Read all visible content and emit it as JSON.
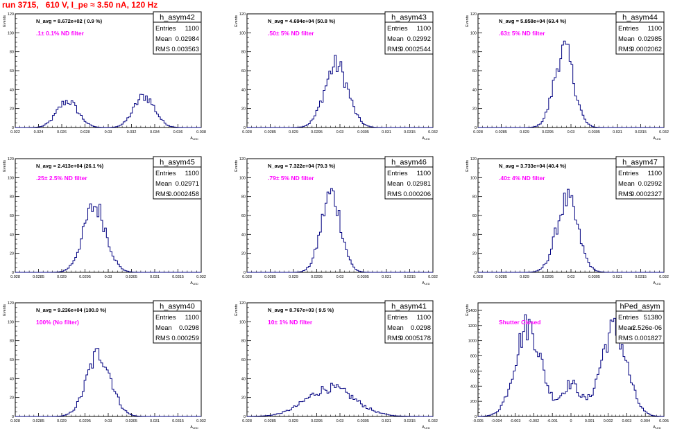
{
  "page": {
    "title": "run 3715,   610 V, I_pe ≈ 3.50 nA, 120 Hz"
  },
  "colors": {
    "hist": "#000080",
    "annot": "#ff00ff",
    "title_red": "#ff0000"
  },
  "chart_data": [
    {
      "type": "bar",
      "name": "h_asym42",
      "ylabel": "Events",
      "xlabel": "A",
      "xlim": [
        0.022,
        0.038
      ],
      "ylim": [
        0,
        120
      ],
      "xticks": [
        0.022,
        0.024,
        0.026,
        0.028,
        0.03,
        0.032,
        0.034,
        0.036,
        0.038
      ],
      "xtick_labels": [
        "0.022",
        "0.024",
        "0.026",
        "0.028",
        "0.03",
        "0.032",
        "0.034",
        "0.036",
        "0.038"
      ],
      "yticks": [
        0,
        20,
        40,
        60,
        80,
        100,
        120
      ],
      "navg": "N_avg = 8.672e+02 ( 0.9 %)",
      "annot": ".1± 0.1% ND filter",
      "stats": {
        "entries": "1100",
        "mean": "0.02984",
        "rms": "0.003563"
      },
      "peaks": [
        {
          "mu": 0.0265,
          "sigma": 0.0009,
          "amp": 28
        },
        {
          "mu": 0.0331,
          "sigma": 0.0009,
          "amp": 33
        }
      ]
    },
    {
      "type": "bar",
      "name": "h_asym43",
      "ylabel": "Events",
      "xlabel": "A",
      "xlim": [
        0.028,
        0.032
      ],
      "ylim": [
        0,
        120
      ],
      "xticks": [
        0.028,
        0.0285,
        0.029,
        0.0295,
        0.03,
        0.0305,
        0.031,
        0.0315,
        0.032
      ],
      "xtick_labels": [
        "0.028",
        "0.0285",
        "0.029",
        "0.0295",
        "0.03",
        "0.0305",
        "0.031",
        "0.0315",
        "0.032"
      ],
      "yticks": [
        0,
        20,
        40,
        60,
        80,
        100,
        120
      ],
      "navg": "N_avg = 4.694e+04 (50.8 %)",
      "annot": ".50± 5% ND filter",
      "stats": {
        "entries": "1100",
        "mean": "0.02992",
        "rms": "0.0002544"
      },
      "peaks": [
        {
          "mu": 0.02992,
          "sigma": 0.00025,
          "amp": 66
        }
      ]
    },
    {
      "type": "bar",
      "name": "h_asym44",
      "ylabel": "Events",
      "xlabel": "A",
      "xlim": [
        0.028,
        0.032
      ],
      "ylim": [
        0,
        120
      ],
      "xticks": [
        0.028,
        0.0285,
        0.029,
        0.0295,
        0.03,
        0.0305,
        0.031,
        0.0315,
        0.032
      ],
      "xtick_labels": [
        "0.028",
        "0.0285",
        "0.029",
        "0.0295",
        "0.03",
        "0.0305",
        "0.031",
        "0.0315",
        "0.032"
      ],
      "yticks": [
        0,
        20,
        40,
        60,
        80,
        100,
        120
      ],
      "navg": "N_avg = 5.858e+04 (63.4 %)",
      "annot": ".63± 5% ND filter",
      "stats": {
        "entries": "1100",
        "mean": "0.02985",
        "rms": "0.0002062"
      },
      "peaks": [
        {
          "mu": 0.02985,
          "sigma": 0.00021,
          "amp": 82
        }
      ]
    },
    {
      "type": "bar",
      "name": "h_asym45",
      "ylabel": "Events",
      "xlabel": "A",
      "xlim": [
        0.028,
        0.032
      ],
      "ylim": [
        0,
        120
      ],
      "xticks": [
        0.028,
        0.0285,
        0.029,
        0.0295,
        0.03,
        0.0305,
        0.031,
        0.0315,
        0.032
      ],
      "xtick_labels": [
        "0.028",
        "0.0285",
        "0.029",
        "0.0295",
        "0.03",
        "0.0305",
        "0.031",
        "0.0315",
        "0.032"
      ],
      "yticks": [
        0,
        20,
        40,
        60,
        80,
        100,
        120
      ],
      "navg": "N_avg = 2.413e+04 (26.1 %)",
      "annot": ".25± 2.5% ND filter",
      "stats": {
        "entries": "1100",
        "mean": "0.02971",
        "rms": "0.0002458"
      },
      "peaks": [
        {
          "mu": 0.02971,
          "sigma": 0.000245,
          "amp": 70
        }
      ]
    },
    {
      "type": "bar",
      "name": "h_asym46",
      "ylabel": "Events",
      "xlabel": "A",
      "xlim": [
        0.028,
        0.032
      ],
      "ylim": [
        0,
        120
      ],
      "xticks": [
        0.028,
        0.0285,
        0.029,
        0.0295,
        0.03,
        0.0305,
        0.031,
        0.0315,
        0.032
      ],
      "xtick_labels": [
        "0.028",
        "0.0285",
        "0.029",
        "0.0295",
        "0.03",
        "0.0305",
        "0.031",
        "0.0315",
        "0.032"
      ],
      "yticks": [
        0,
        20,
        40,
        60,
        80,
        100,
        120
      ],
      "navg": "N_avg = 7.322e+04 (79.3 %)",
      "annot": ".79± 5% ND filter",
      "stats": {
        "entries": "1100",
        "mean": "0.02981",
        "rms": "0.000206"
      },
      "peaks": [
        {
          "mu": 0.02981,
          "sigma": 0.00021,
          "amp": 83
        }
      ]
    },
    {
      "type": "bar",
      "name": "h_asym47",
      "ylabel": "Events",
      "xlabel": "A",
      "xlim": [
        0.028,
        0.032
      ],
      "ylim": [
        0,
        120
      ],
      "xticks": [
        0.028,
        0.0285,
        0.029,
        0.0295,
        0.03,
        0.0305,
        0.031,
        0.0315,
        0.032
      ],
      "xtick_labels": [
        "0.028",
        "0.0285",
        "0.029",
        "0.0295",
        "0.03",
        "0.0305",
        "0.031",
        "0.0315",
        "0.032"
      ],
      "yticks": [
        0,
        20,
        40,
        60,
        80,
        100,
        120
      ],
      "navg": "N_avg = 3.733e+04 (40.4 %)",
      "annot": ".40± 4% ND filter",
      "stats": {
        "entries": "1100",
        "mean": "0.02992",
        "rms": "0.0002327"
      },
      "peaks": [
        {
          "mu": 0.02992,
          "sigma": 0.00023,
          "amp": 76
        }
      ]
    },
    {
      "type": "bar",
      "name": "h_asym40",
      "ylabel": "Events",
      "xlabel": "A",
      "xlim": [
        0.028,
        0.032
      ],
      "ylim": [
        0,
        120
      ],
      "xticks": [
        0.028,
        0.0285,
        0.029,
        0.0295,
        0.03,
        0.0305,
        0.031,
        0.0315,
        0.032
      ],
      "xtick_labels": [
        "0.028",
        "0.0285",
        "0.029",
        "0.0295",
        "0.03",
        "0.0305",
        "0.031",
        "0.0315",
        "0.032"
      ],
      "yticks": [
        0,
        20,
        40,
        60,
        80,
        100,
        120
      ],
      "navg": "N_avg = 9.236e+04 (100.0 %)",
      "annot": "100% (No filter)",
      "stats": {
        "entries": "1100",
        "mean": "0.0298",
        "rms": "0.000259"
      },
      "peaks": [
        {
          "mu": 0.0298,
          "sigma": 0.00026,
          "amp": 66
        }
      ]
    },
    {
      "type": "bar",
      "name": "h_asym41",
      "ylabel": "Events",
      "xlabel": "A",
      "xlim": [
        0.028,
        0.032
      ],
      "ylim": [
        0,
        120
      ],
      "xticks": [
        0.028,
        0.0285,
        0.029,
        0.0295,
        0.03,
        0.0305,
        0.031,
        0.0315,
        0.032
      ],
      "xtick_labels": [
        "0.028",
        "0.0285",
        "0.029",
        "0.0295",
        "0.03",
        "0.0305",
        "0.031",
        "0.0315",
        "0.032"
      ],
      "yticks": [
        0,
        20,
        40,
        60,
        80,
        100,
        120
      ],
      "navg": "N_avg = 8.767e+03 ( 9.5 %)",
      "annot": "10± 1% ND filter",
      "stats": {
        "entries": "1100",
        "mean": "0.0298",
        "rms": "0.0005178"
      },
      "peaks": [
        {
          "mu": 0.0298,
          "sigma": 0.00052,
          "amp": 30
        }
      ]
    },
    {
      "type": "bar",
      "name": "hPed_asym",
      "ylabel": "Events",
      "xlabel": "A",
      "xlim": [
        -0.005,
        0.005
      ],
      "ylim": [
        0,
        1500
      ],
      "xticks": [
        -0.005,
        -0.004,
        -0.003,
        -0.002,
        -0.001,
        0,
        0.001,
        0.002,
        0.003,
        0.004,
        0.005
      ],
      "xtick_labels": [
        "-0.005",
        "-0.004",
        "-0.003",
        "-0.002",
        "-0.001",
        "0",
        "0.001",
        "0.002",
        "0.003",
        "0.004",
        "0.005"
      ],
      "yticks": [
        0,
        200,
        400,
        600,
        800,
        1000,
        1200,
        1400
      ],
      "navg": "",
      "annot": "Shutter Closed",
      "stats": {
        "entries": "51380",
        "mean": "-2.526e-06",
        "rms": "0.001827"
      },
      "peaks": [
        {
          "mu": -0.0023,
          "sigma": 0.0007,
          "amp": 1200
        },
        {
          "mu": 0.0023,
          "sigma": 0.0007,
          "amp": 1150
        },
        {
          "mu": 0.0,
          "sigma": 0.0005,
          "amp": 420
        }
      ]
    }
  ]
}
